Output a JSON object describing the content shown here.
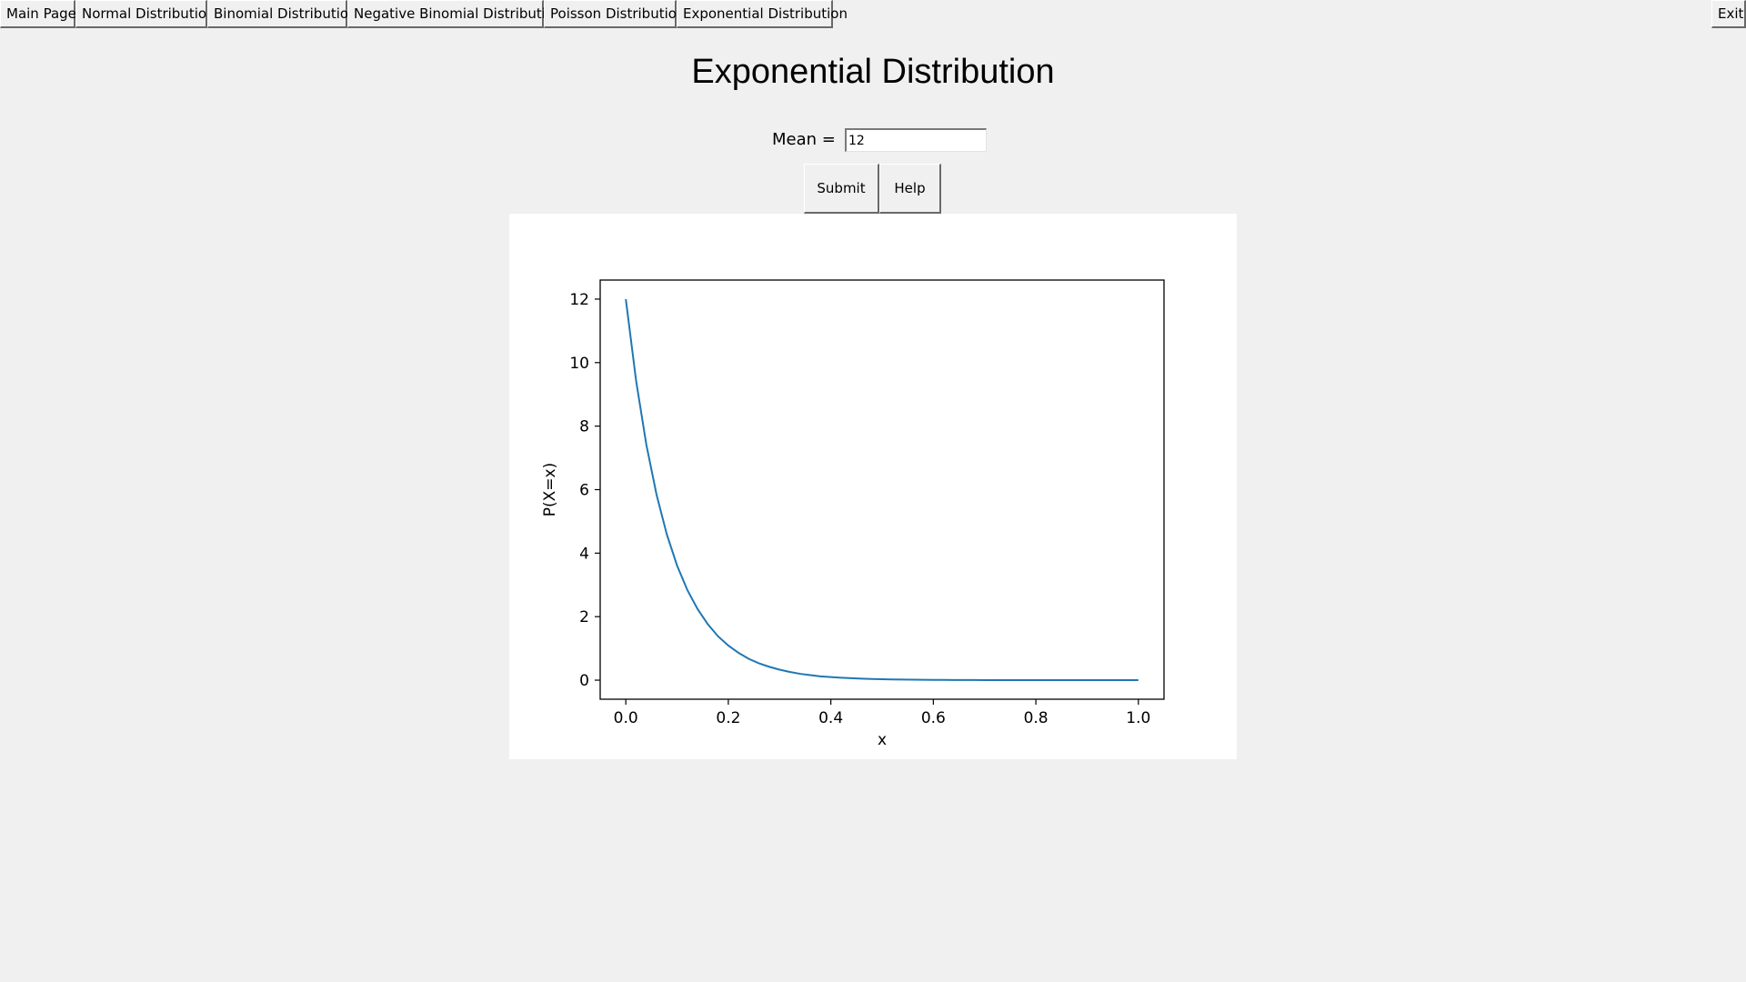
{
  "nav": {
    "tabs": [
      {
        "label": "Main Page"
      },
      {
        "label": "Normal Distribution"
      },
      {
        "label": "Binomial Distribution"
      },
      {
        "label": "Negative Binomial Distribution"
      },
      {
        "label": "Poisson Distribution"
      },
      {
        "label": "Exponential Distribution"
      }
    ],
    "exit_label": "Exit"
  },
  "page": {
    "title": "Exponential Distribution"
  },
  "form": {
    "mean_label": "Mean =",
    "mean_value": "12",
    "submit_label": "Submit",
    "help_label": "Help"
  },
  "chart_data": {
    "type": "line",
    "title": "",
    "xlabel": "x",
    "ylabel": "P(X=x)",
    "xlim": [
      -0.05,
      1.05
    ],
    "ylim": [
      -0.6,
      12.6
    ],
    "xticks": [
      "0.0",
      "0.2",
      "0.4",
      "0.6",
      "0.8",
      "1.0"
    ],
    "yticks": [
      "0",
      "2",
      "4",
      "6",
      "8",
      "10",
      "12"
    ],
    "grid": false,
    "line_color": "#1f77b4",
    "series": [
      {
        "x": [
          0.0,
          0.02,
          0.04,
          0.06,
          0.08,
          0.1,
          0.12,
          0.14,
          0.16,
          0.18,
          0.2,
          0.22,
          0.24,
          0.26,
          0.28,
          0.3,
          0.32,
          0.34,
          0.36,
          0.38,
          0.4,
          0.42,
          0.44,
          0.46,
          0.48,
          0.5,
          0.52,
          0.54,
          0.56,
          0.58,
          0.6,
          0.62,
          0.64,
          0.66,
          0.68,
          0.7,
          0.72,
          0.74,
          0.76,
          0.78,
          0.8,
          0.82,
          0.84,
          0.86,
          0.88,
          0.9,
          0.92,
          0.94,
          0.96,
          0.98,
          1.0
        ],
        "y": [
          12.0,
          9.44,
          7.42,
          5.84,
          4.59,
          3.61,
          2.84,
          2.24,
          1.76,
          1.38,
          1.09,
          0.86,
          0.67,
          0.53,
          0.42,
          0.33,
          0.26,
          0.2,
          0.16,
          0.12,
          0.099,
          0.078,
          0.061,
          0.048,
          0.038,
          0.03,
          0.023,
          0.018,
          0.014,
          0.011,
          0.009,
          0.0071,
          0.0055,
          0.0044,
          0.0034,
          0.0027,
          0.0021,
          0.0017,
          0.0013,
          0.001,
          0.00082,
          0.00064,
          0.00051,
          0.0004,
          0.00031,
          0.00024,
          0.00019,
          0.00015,
          0.00012,
          9e-05,
          7e-05
        ]
      }
    ]
  }
}
